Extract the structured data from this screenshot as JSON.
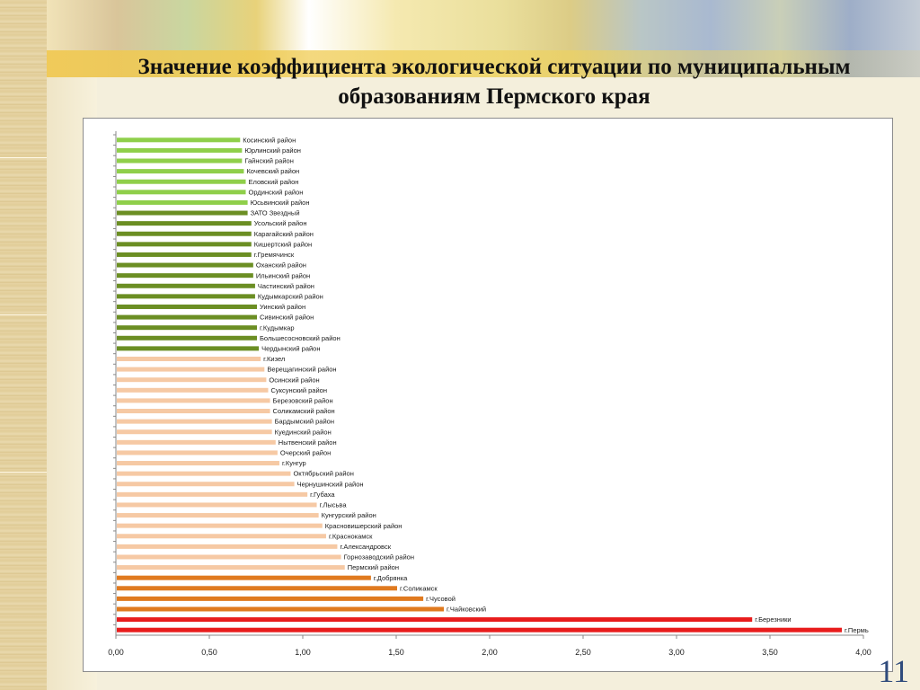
{
  "slide": {
    "title": "Значение коэффициента экологической ситуации по муниципальным образованиям Пермского края",
    "page_number": "11"
  },
  "colors": {
    "light_green": "#8fcf4a",
    "dark_green": "#6b8e23",
    "peach": "#f6c9a4",
    "orange": "#e07a1f",
    "red": "#e81c1c"
  },
  "chart_data": {
    "type": "bar",
    "orientation": "horizontal",
    "xlim": [
      0,
      4
    ],
    "xticks": [
      "0,00",
      "0,50",
      "1,00",
      "1,50",
      "2,00",
      "2,50",
      "3,00",
      "3,50",
      "4,00"
    ],
    "grid": false,
    "categories": [
      "Косинский район",
      "Юрлинский район",
      "Гайнский район",
      "Кочевский район",
      "Еловский район",
      "Ординский район",
      "Юсьвинский район",
      "ЗАТО Звездный",
      "Усольский район",
      "Карагайский район",
      "Кишертский район",
      "г.Гремячинск",
      "Оханский район",
      "Ильинский район",
      "Частинский район",
      "Кудымкарский район",
      "Уинский район",
      "Сивинский район",
      "г.Кудымкар",
      "Большесосновский район",
      "Чердынский район",
      "г.Кизел",
      "Верещагинский район",
      "Осинский район",
      "Суксунский район",
      "Березовский район",
      "Соликамский район",
      "Бардымский район",
      "Куединский район",
      "Нытвенский район",
      "Очерский район",
      "г.Кунгур",
      "Октябрьский район",
      "Чернушинский район",
      "г.Губаха",
      "г.Лысьва",
      "Кунгурский район",
      "Красновишерский район",
      "г.Краснокамск",
      "г.Александровск",
      "Горнозаводский район",
      "Пермский район",
      "г.Добрянка",
      "г.Соликамск",
      "г.Чусовой",
      "г.Чайковский",
      "г.Березники",
      "г.Пермь"
    ],
    "values": [
      0.66,
      0.67,
      0.67,
      0.68,
      0.69,
      0.69,
      0.7,
      0.7,
      0.72,
      0.72,
      0.72,
      0.72,
      0.73,
      0.73,
      0.74,
      0.74,
      0.75,
      0.75,
      0.75,
      0.75,
      0.76,
      0.77,
      0.79,
      0.8,
      0.81,
      0.82,
      0.82,
      0.83,
      0.83,
      0.85,
      0.86,
      0.87,
      0.93,
      0.95,
      1.02,
      1.07,
      1.08,
      1.1,
      1.12,
      1.18,
      1.2,
      1.22,
      1.36,
      1.5,
      1.64,
      1.75,
      3.4,
      3.88
    ],
    "groups": [
      {
        "color_key": "light_green",
        "count": 7
      },
      {
        "color_key": "dark_green",
        "count": 14
      },
      {
        "color_key": "peach",
        "count": 21
      },
      {
        "color_key": "orange",
        "count": 4
      },
      {
        "color_key": "red",
        "count": 2
      }
    ]
  }
}
